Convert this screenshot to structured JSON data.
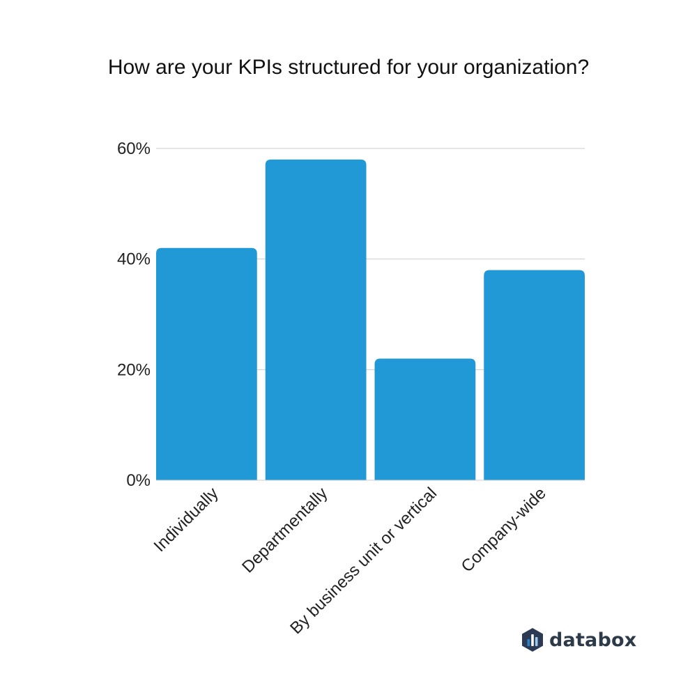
{
  "title": "How are your KPIs structured for your organization?",
  "brand": {
    "name": "databox",
    "logo_icon": "databox-hexagon-bars-logo"
  },
  "colors": {
    "bar": "#2199d6",
    "grid": "#cccccc",
    "text": "#222222",
    "logo_dark": "#2b3a55",
    "logo_blue": "#2a83c9"
  },
  "chart_data": {
    "type": "bar",
    "title": "How are your KPIs structured for your organization?",
    "categories": [
      "Individually",
      "Departmentally",
      "By business unit or vertical",
      "Company-wide"
    ],
    "values": [
      42,
      58,
      22,
      38
    ],
    "value_unit": "%",
    "ylim": [
      0,
      60
    ],
    "yticks": [
      0,
      20,
      40,
      60
    ],
    "ytick_labels": [
      "0%",
      "20%",
      "40%",
      "60%"
    ],
    "xlabel": "",
    "ylabel": "",
    "grid": true,
    "legend": "none"
  }
}
